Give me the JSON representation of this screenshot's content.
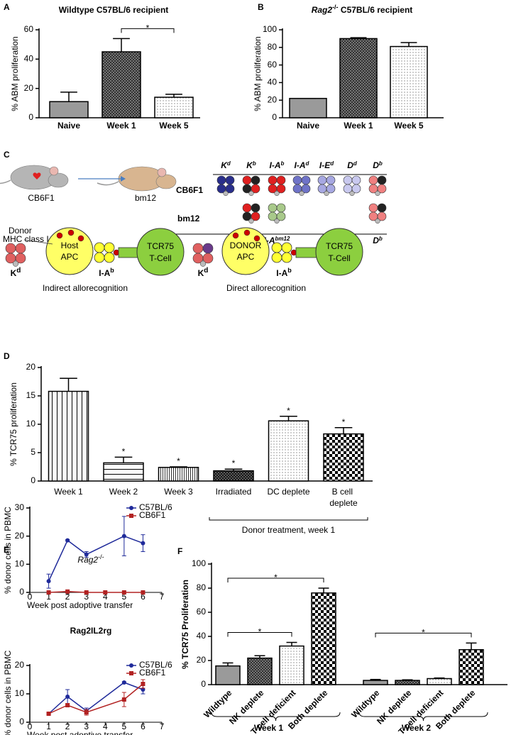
{
  "chart_data": [
    {
      "type": "bar",
      "panel": "A",
      "title": "Wildtype C57BL/6 recipient",
      "ylabel": "% ABM proliferation",
      "categories": [
        "Naive",
        "Week 1",
        "Week 5"
      ],
      "values": [
        11,
        45,
        14
      ],
      "errors": [
        6.5,
        9,
        2
      ],
      "colors": [
        "#9a9a9a",
        "#9a9a9a",
        "#ffffff"
      ],
      "patterns": [
        "solid",
        "crosshatch",
        "dots"
      ],
      "ylim": [
        0,
        60
      ],
      "yticks": [
        0,
        20,
        40,
        60
      ],
      "annotations": [
        {
          "text": "*",
          "between": [
            1,
            2
          ]
        }
      ]
    },
    {
      "type": "bar",
      "panel": "B",
      "title": {
        "base": "Rag2",
        "sup": "-/-",
        "rest": " C57BL/6 recipient"
      },
      "ylabel": "% ABM proliferation",
      "categories": [
        "Naive",
        "Week 1",
        "Week 5"
      ],
      "values": [
        22,
        90,
        81
      ],
      "errors": [
        0,
        1,
        4.5
      ],
      "colors": [
        "#9a9a9a",
        "#9a9a9a",
        "#ffffff"
      ],
      "patterns": [
        "solid",
        "crosshatch",
        "dots"
      ],
      "ylim": [
        0,
        100
      ],
      "yticks": [
        0,
        20,
        40,
        60,
        80,
        100
      ]
    },
    {
      "type": "bar",
      "panel": "D",
      "ylabel": "% TCR75 proliferation",
      "categories": [
        "Week 1",
        "Week 2",
        "Week 3",
        "Irradiated",
        "DC deplete",
        "B cell deplete"
      ],
      "values": [
        15.8,
        3.2,
        2.4,
        1.8,
        10.6,
        8.3
      ],
      "errors": [
        2.3,
        1.0,
        0.1,
        0.3,
        0.8,
        1.1
      ],
      "colors": [
        "#ffffff",
        "#ffffff",
        "#ffffff",
        "#ffffff",
        "#ffffff",
        "#ffffff"
      ],
      "patterns": [
        "vlines",
        "hlines",
        "vlines-fine",
        "crossdark",
        "dots",
        "checker"
      ],
      "ylim": [
        0,
        20
      ],
      "yticks": [
        0,
        5,
        10,
        15,
        20
      ],
      "annotations": [
        {
          "text": "*",
          "at": 1
        },
        {
          "text": "*",
          "at": 2
        },
        {
          "text": "*",
          "at": 3
        },
        {
          "text": "*",
          "at": 4
        },
        {
          "text": "*",
          "at": 5
        }
      ],
      "groups": [
        {
          "label": "Donor treatment, week 1",
          "from": 3,
          "to": 5
        }
      ]
    },
    {
      "type": "line",
      "panel": "E",
      "title": {
        "base": "Rag2",
        "sup": "-/-"
      },
      "ylabel": "% donor cells in PBMC",
      "xlabel": "Week post adoptive transfer",
      "xlim": [
        0,
        7
      ],
      "xticks": [
        0,
        1,
        2,
        3,
        4,
        5,
        6,
        7
      ],
      "ylim": [
        0,
        30
      ],
      "yticks": [
        0,
        10,
        20,
        30
      ],
      "legend": "upper right",
      "series": [
        {
          "name": "C57BL/6",
          "color": "#1f2a9a",
          "marker": "circle",
          "x": [
            1,
            2,
            3,
            5,
            6
          ],
          "values": [
            4,
            18.5,
            13.5,
            20,
            17.5
          ],
          "errors": [
            2.5,
            0.3,
            1,
            7,
            3
          ]
        },
        {
          "name": "CB6F1",
          "color": "#b22222",
          "marker": "square",
          "x": [
            1,
            2,
            3,
            4,
            5,
            6
          ],
          "values": [
            0,
            0.3,
            0,
            0,
            0,
            0
          ]
        }
      ]
    },
    {
      "type": "line",
      "title": "Rag2IL2rg",
      "ylabel": "% donor cells in PBMC",
      "xlabel": "Week post adoptive transfer",
      "xlim": [
        0,
        7
      ],
      "xticks": [
        0,
        1,
        2,
        3,
        4,
        5,
        6,
        7
      ],
      "ylim": [
        0,
        20
      ],
      "yticks": [
        0,
        10,
        20
      ],
      "legend": "upper right",
      "series": [
        {
          "name": "C57BL/6",
          "color": "#1f2a9a",
          "marker": "circle",
          "x": [
            1,
            2,
            3,
            5,
            6
          ],
          "values": [
            3,
            9,
            4,
            14,
            11.5
          ],
          "errors": [
            0.3,
            2.5,
            1,
            0.3,
            1.5
          ]
        },
        {
          "name": "CB6F1",
          "color": "#b22222",
          "marker": "square",
          "x": [
            1,
            2,
            3,
            5,
            6
          ],
          "values": [
            3,
            6,
            3.5,
            8,
            13.5
          ],
          "errors": [
            0.3,
            0.5,
            1,
            2.5,
            1.5
          ]
        }
      ]
    },
    {
      "type": "bar",
      "panel": "F",
      "ylabel": "% TCR75 Proliferation",
      "categories": [
        "Wildtype",
        "NK deplete",
        "T cell deficient",
        "Both deplete",
        "Wildtype",
        "NK deplete",
        "T cell deficient",
        "Both deplete"
      ],
      "values": [
        15.5,
        22,
        32,
        76,
        3.5,
        3.5,
        5,
        29
      ],
      "errors": [
        2.5,
        2,
        3,
        4,
        0.8,
        0.5,
        0.5,
        5.5
      ],
      "colors": [
        "#9a9a9a",
        "#9a9a9a",
        "#ffffff",
        "#ffffff",
        "#9a9a9a",
        "#9a9a9a",
        "#ffffff",
        "#ffffff"
      ],
      "patterns": [
        "solid",
        "crosshatch",
        "dots",
        "checker",
        "solid",
        "crosshatch",
        "dots",
        "checker"
      ],
      "ylim": [
        0,
        100
      ],
      "yticks": [
        0,
        20,
        40,
        60,
        80,
        100
      ],
      "annotations": [
        {
          "text": "*",
          "between": [
            0,
            3
          ]
        },
        {
          "text": "*",
          "between": [
            0,
            2
          ]
        },
        {
          "text": "*",
          "between": [
            4,
            7
          ]
        }
      ],
      "groups": [
        {
          "label": "Week 1",
          "from": 0,
          "to": 3
        },
        {
          "label": "Week 2",
          "from": 4,
          "to": 7
        }
      ]
    }
  ],
  "diagram": {
    "panel": "C",
    "mouse_labels": [
      "CB6F1",
      "bm12"
    ],
    "row_labels": [
      "CB6F1",
      "bm12"
    ],
    "alleles_top": [
      {
        "base": "K",
        "sup": "d"
      },
      {
        "base": "K",
        "sup": "b"
      },
      {
        "base": "I-A",
        "sup": "b"
      },
      {
        "base": "I-A",
        "sup": "d"
      },
      {
        "base": "I-E",
        "sup": "d"
      },
      {
        "base": "D",
        "sup": "d"
      },
      {
        "base": "D",
        "sup": "b"
      }
    ],
    "alleles_bottom": [
      {
        "base": "K",
        "sup": "b"
      },
      {
        "base": "I-A",
        "sup": "bm12"
      },
      {
        "base": "D",
        "sup": "b"
      }
    ],
    "donor_mhc": [
      "Donor",
      "MHC class I"
    ],
    "schemes": [
      {
        "apc": [
          "Host",
          "APC"
        ],
        "kd": {
          "base": "K",
          "sup": "d"
        },
        "iab": {
          "base": "I-A",
          "sup": "b"
        },
        "tcell": [
          "TCR75",
          "T-Cell"
        ],
        "caption": "Indirect allorecognition"
      },
      {
        "apc": [
          "DONOR",
          "APC"
        ],
        "kd": {
          "base": "K",
          "sup": "d"
        },
        "iab": {
          "base": "I-A",
          "sup": "b"
        },
        "tcell": [
          "TCR75",
          "T-Cell"
        ],
        "caption": "Direct allorecognition"
      }
    ]
  }
}
